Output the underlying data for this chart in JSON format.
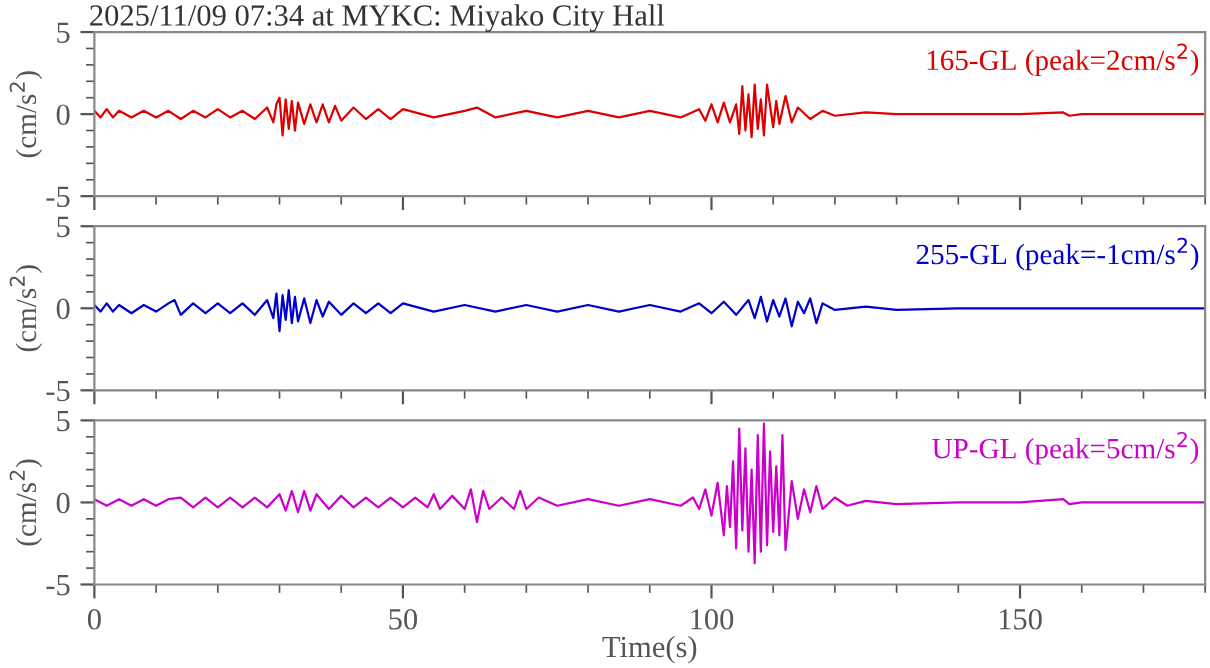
{
  "chart_data": [
    {
      "type": "line",
      "title": "2025/11/09 07:34 at MYKC: Miyako City Hall",
      "ylabel": "(cm/s$^{2}$)",
      "xlim": [
        0,
        180
      ],
      "ylim": [
        -5,
        5
      ],
      "yticks": [
        -5,
        0,
        5
      ],
      "xticks": [
        0,
        50,
        100,
        150
      ],
      "tick_labels": "y",
      "grid": false,
      "legend": false,
      "series": [
        {
          "name": "165-GL (peak=2cm/s$^{2}$)",
          "color": "#dd0000",
          "x": [
            0,
            1,
            2,
            3,
            4,
            6,
            8,
            10,
            12,
            14,
            16,
            18,
            20,
            22,
            24,
            26,
            28,
            29,
            29.5,
            30,
            30.5,
            31,
            31.5,
            32,
            32.5,
            33,
            34,
            35,
            36,
            37,
            38,
            39,
            40,
            42,
            44,
            46,
            48,
            50,
            55,
            60,
            62,
            65,
            70,
            75,
            80,
            85,
            90,
            95,
            98,
            99,
            100,
            101,
            102,
            103,
            104,
            104.5,
            105,
            105.5,
            106,
            106.5,
            107,
            107.5,
            108,
            108.5,
            109,
            110,
            110.5,
            111,
            112,
            113,
            114,
            116,
            118,
            120,
            125,
            130,
            140,
            150,
            157,
            158,
            160,
            170,
            180
          ],
          "values": [
            0.2,
            -0.2,
            0.3,
            -0.2,
            0.2,
            -0.2,
            0.2,
            -0.2,
            0.2,
            -0.3,
            0.2,
            -0.2,
            0.3,
            -0.2,
            0.2,
            -0.3,
            0.4,
            -0.5,
            0.6,
            1.0,
            -1.3,
            0.9,
            -0.9,
            0.8,
            -1.0,
            0.7,
            -0.6,
            0.6,
            -0.5,
            0.6,
            -0.5,
            0.5,
            -0.4,
            0.4,
            -0.3,
            0.3,
            -0.3,
            0.3,
            -0.2,
            0.2,
            0.4,
            -0.2,
            0.2,
            -0.2,
            0.2,
            -0.2,
            0.2,
            -0.2,
            0.3,
            -0.4,
            0.6,
            -0.5,
            0.7,
            -0.5,
            0.6,
            -1.2,
            1.7,
            -1.0,
            1.2,
            -1.4,
            1.8,
            -0.9,
            0.9,
            -1.3,
            1.8,
            -0.8,
            0.8,
            -0.6,
            1.1,
            -0.5,
            0.4,
            -0.3,
            0.2,
            -0.1,
            0.1,
            0,
            0,
            0,
            0.1,
            -0.1,
            0,
            0,
            0
          ]
        }
      ]
    },
    {
      "type": "line",
      "ylabel": "(cm/s$^{2}$)",
      "xlim": [
        0,
        180
      ],
      "ylim": [
        -5,
        5
      ],
      "yticks": [
        -5,
        0,
        5
      ],
      "xticks": [
        0,
        50,
        100,
        150
      ],
      "tick_labels": "y",
      "grid": false,
      "legend": false,
      "series": [
        {
          "name": "255-GL (peak=-1cm/s$^{2}$)",
          "color": "#0000cc",
          "x": [
            0,
            1,
            2,
            3,
            4,
            6,
            8,
            10,
            12,
            13,
            14,
            16,
            18,
            20,
            22,
            24,
            26,
            28,
            29,
            29.5,
            30,
            30.5,
            31,
            31.5,
            32,
            32.5,
            33,
            34,
            35,
            36,
            37,
            38,
            40,
            42,
            44,
            46,
            48,
            50,
            55,
            60,
            65,
            70,
            75,
            80,
            85,
            90,
            95,
            98,
            100,
            102,
            104,
            106,
            107,
            108,
            109,
            110,
            111,
            112,
            113,
            114,
            115,
            116,
            117,
            118,
            120,
            125,
            130,
            140,
            150,
            160,
            170,
            180
          ],
          "values": [
            0.2,
            -0.2,
            0.3,
            -0.2,
            0.2,
            -0.3,
            0.2,
            -0.2,
            0.3,
            0.5,
            -0.4,
            0.3,
            -0.3,
            0.3,
            -0.3,
            0.3,
            -0.4,
            0.5,
            -0.6,
            0.9,
            -1.4,
            0.8,
            -0.7,
            1.1,
            -0.9,
            0.7,
            -0.8,
            0.6,
            -0.9,
            0.5,
            -0.5,
            0.4,
            -0.4,
            0.3,
            -0.3,
            0.3,
            -0.3,
            0.3,
            -0.2,
            0.2,
            -0.2,
            0.2,
            -0.2,
            0.2,
            -0.2,
            0.2,
            -0.2,
            0.3,
            -0.3,
            0.4,
            -0.4,
            0.5,
            -0.6,
            0.7,
            -0.8,
            0.5,
            -0.5,
            0.6,
            -1.1,
            0.4,
            -0.3,
            0.6,
            -0.9,
            0.3,
            -0.1,
            0.1,
            -0.1,
            0,
            0,
            0,
            0,
            0
          ]
        }
      ]
    },
    {
      "type": "line",
      "xlabel": "Time(s)",
      "ylabel": "(cm/s$^{2}$)",
      "xlim": [
        0,
        180
      ],
      "ylim": [
        -5,
        5
      ],
      "yticks": [
        -5,
        0,
        5
      ],
      "xticks": [
        0,
        50,
        100,
        150
      ],
      "grid": false,
      "legend": false,
      "series": [
        {
          "name": "UP-GL (peak=5cm/s$^{2}$)",
          "color": "#cc00cc",
          "x": [
            0,
            2,
            4,
            6,
            8,
            10,
            12,
            14,
            16,
            18,
            20,
            22,
            24,
            26,
            28,
            30,
            31,
            32,
            33,
            34,
            35,
            36,
            38,
            40,
            42,
            44,
            46,
            48,
            50,
            52,
            54,
            55,
            56,
            58,
            60,
            61,
            62,
            63,
            64,
            66,
            68,
            69,
            70,
            72,
            75,
            80,
            85,
            90,
            95,
            97,
            98,
            99,
            100,
            101,
            102,
            102.5,
            103,
            103.5,
            104,
            104.5,
            105,
            105.5,
            106,
            106.5,
            107,
            107.5,
            108,
            108.5,
            109,
            109.5,
            110,
            110.5,
            111,
            111.5,
            112,
            113,
            114,
            115,
            116,
            117,
            118,
            120,
            122,
            125,
            130,
            140,
            150,
            157,
            158,
            160,
            170,
            180
          ],
          "values": [
            0.2,
            -0.2,
            0.2,
            -0.2,
            0.2,
            -0.2,
            0.2,
            0.3,
            -0.3,
            0.3,
            -0.3,
            0.3,
            -0.3,
            0.3,
            -0.3,
            0.5,
            -0.5,
            0.7,
            -0.6,
            0.7,
            -0.5,
            0.5,
            -0.4,
            0.4,
            -0.3,
            0.3,
            -0.3,
            0.3,
            -0.3,
            0.3,
            -0.3,
            0.5,
            -0.4,
            0.4,
            -0.4,
            0.8,
            -1.2,
            0.7,
            -0.4,
            0.3,
            -0.4,
            0.7,
            -0.4,
            0.3,
            -0.2,
            0.2,
            -0.2,
            0.2,
            -0.2,
            0.3,
            -0.4,
            0.8,
            -0.8,
            1.2,
            -2.0,
            1.0,
            -1.5,
            2.5,
            -2.8,
            4.5,
            -1.7,
            3.3,
            -3.0,
            2.0,
            -3.7,
            4.1,
            -3.0,
            4.8,
            -2.6,
            3.1,
            -1.8,
            2.2,
            -2.0,
            4.1,
            -2.9,
            1.3,
            -1.0,
            0.8,
            -0.6,
            1.0,
            -0.4,
            0.3,
            -0.2,
            0.1,
            -0.1,
            0,
            0,
            0.2,
            -0.1,
            0,
            0,
            0
          ]
        }
      ]
    }
  ]
}
